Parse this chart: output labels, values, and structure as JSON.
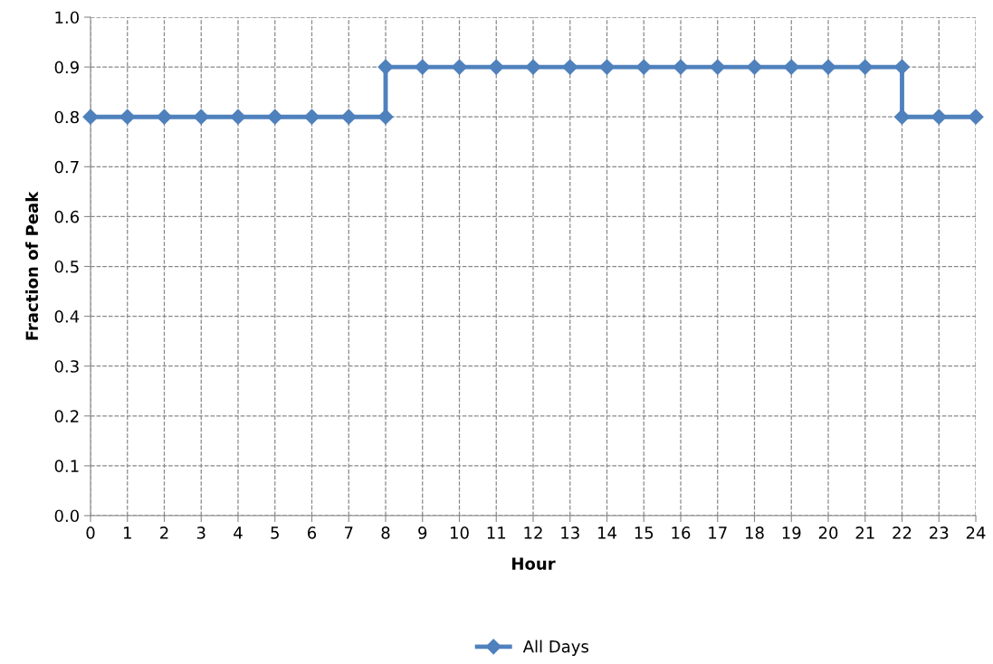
{
  "chart_data": {
    "type": "line",
    "xlabel": "Hour",
    "ylabel": "Fraction of Peak",
    "series": [
      {
        "name": "All Days",
        "color": "#4f81bd",
        "x": [
          0,
          1,
          2,
          3,
          4,
          5,
          6,
          7,
          8,
          8,
          9,
          10,
          11,
          12,
          13,
          14,
          15,
          16,
          17,
          18,
          19,
          20,
          21,
          22,
          22,
          23,
          24
        ],
        "values": [
          0.8,
          0.8,
          0.8,
          0.8,
          0.8,
          0.8,
          0.8,
          0.8,
          0.8,
          0.9,
          0.9,
          0.9,
          0.9,
          0.9,
          0.9,
          0.9,
          0.9,
          0.9,
          0.9,
          0.9,
          0.9,
          0.9,
          0.9,
          0.9,
          0.8,
          0.8,
          0.8
        ]
      }
    ],
    "xlim": [
      0,
      24
    ],
    "xticks": [
      0,
      1,
      2,
      3,
      4,
      5,
      6,
      7,
      8,
      9,
      10,
      11,
      12,
      13,
      14,
      15,
      16,
      17,
      18,
      19,
      20,
      21,
      22,
      23,
      24
    ],
    "ylim": [
      0,
      1
    ],
    "yticks": [
      {
        "value": 0,
        "label": "0.0"
      },
      {
        "value": 0.1,
        "label": "0.1"
      },
      {
        "value": 0.2,
        "label": "0.2"
      },
      {
        "value": 0.3,
        "label": "0.3"
      },
      {
        "value": 0.4,
        "label": "0.4"
      },
      {
        "value": 0.5,
        "label": "0.5"
      },
      {
        "value": 0.6,
        "label": "0.6"
      },
      {
        "value": 0.7,
        "label": "0.7"
      },
      {
        "value": 0.8,
        "label": "0.8"
      },
      {
        "value": 0.9,
        "label": "0.9"
      },
      {
        "value": 1,
        "label": "1.0"
      }
    ],
    "grid": true,
    "legend": "bottom",
    "marker": "diamond",
    "line_style": "solid"
  }
}
